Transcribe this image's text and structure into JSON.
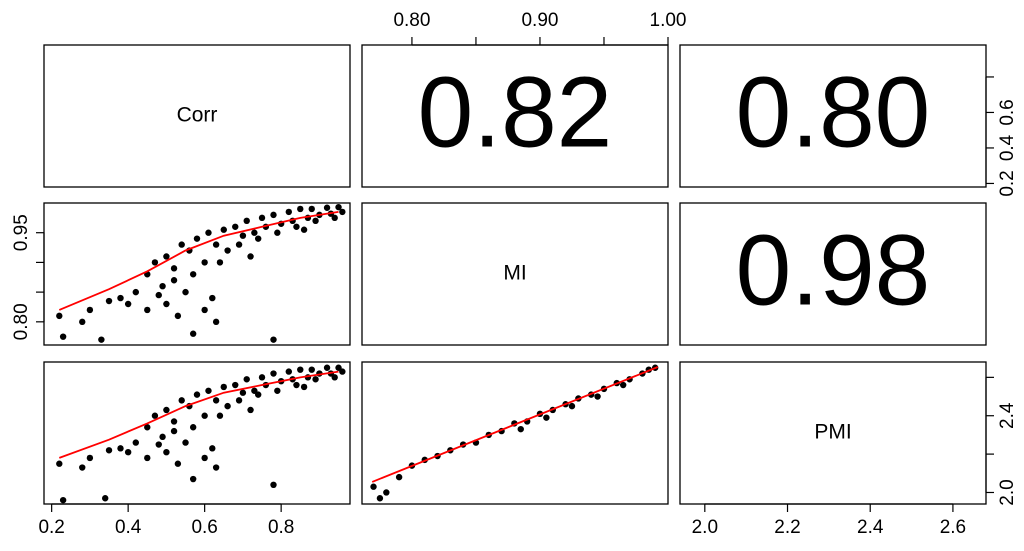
{
  "chart_data": {
    "type": "pairs",
    "variables": [
      {
        "name": "Corr",
        "lim": [
          0.18,
          0.98
        ],
        "xticks": [
          0.2,
          0.4,
          0.6,
          0.8
        ],
        "yticks": [
          0.2,
          0.4,
          0.6,
          {
            "value": 0.8,
            "label": null
          }
        ]
      },
      {
        "name": "MI",
        "lim": [
          0.761,
          1.0
        ],
        "xticks": [
          {
            "value": 0.8,
            "label": "0.80"
          },
          {
            "value": 0.85,
            "label": null
          },
          {
            "value": 0.9,
            "label": "0.90"
          },
          {
            "value": 0.95,
            "label": null
          },
          {
            "value": 1.0,
            "label": "1.00"
          }
        ],
        "yticks": [
          {
            "value": 0.8,
            "label": "0.80"
          },
          {
            "value": 0.85,
            "label": null
          },
          {
            "value": 0.9,
            "label": null
          },
          {
            "value": 0.95,
            "label": "0.95"
          }
        ]
      },
      {
        "name": "PMI",
        "lim": [
          1.94,
          2.68
        ],
        "xticks": [
          {
            "value": 2.0,
            "label": "2.0"
          },
          {
            "value": 2.2,
            "label": "2.2"
          },
          {
            "value": 2.4,
            "label": "2.4"
          },
          {
            "value": 2.6,
            "label": "2.6"
          }
        ],
        "yticks": [
          {
            "value": 2.0,
            "label": "2.0"
          },
          {
            "value": 2.2,
            "label": null
          },
          {
            "value": 2.4,
            "label": "2.4"
          },
          {
            "value": 2.6,
            "label": null
          }
        ]
      }
    ],
    "correlations": {
      "values": [
        0.82,
        0.8,
        0.98
      ],
      "value_labels": [
        "0.82",
        "0.80",
        "0.98"
      ]
    },
    "point_color": "#000000",
    "smooth_color": "#ff0000",
    "scatter": [
      {
        "x": [
          0.22,
          0.23,
          0.28,
          0.3,
          0.33,
          0.35,
          0.38,
          0.4,
          0.42,
          0.45,
          0.48,
          0.5,
          0.53,
          0.55,
          0.57,
          0.6,
          0.62,
          0.63,
          0.78,
          0.45,
          0.47,
          0.5,
          0.52,
          0.54,
          0.56,
          0.58,
          0.6,
          0.61,
          0.63,
          0.65,
          0.66,
          0.68,
          0.7,
          0.71,
          0.73,
          0.75,
          0.76,
          0.78,
          0.8,
          0.82,
          0.83,
          0.85,
          0.87,
          0.88,
          0.9,
          0.92,
          0.93,
          0.95,
          0.96,
          0.64,
          0.69,
          0.74,
          0.79,
          0.84,
          0.89,
          0.94,
          0.57,
          0.52,
          0.49,
          0.72,
          0.86
        ],
        "y": [
          0.81,
          0.775,
          0.8,
          0.82,
          0.77,
          0.835,
          0.84,
          0.83,
          0.85,
          0.82,
          0.845,
          0.83,
          0.81,
          0.85,
          0.78,
          0.82,
          0.84,
          0.8,
          0.77,
          0.88,
          0.9,
          0.91,
          0.89,
          0.93,
          0.92,
          0.94,
          0.9,
          0.95,
          0.93,
          0.955,
          0.92,
          0.96,
          0.945,
          0.97,
          0.95,
          0.975,
          0.96,
          0.98,
          0.965,
          0.985,
          0.97,
          0.99,
          0.975,
          0.99,
          0.98,
          0.992,
          0.982,
          0.993,
          0.985,
          0.9,
          0.93,
          0.94,
          0.95,
          0.96,
          0.97,
          0.975,
          0.88,
          0.87,
          0.86,
          0.91,
          0.955
        ],
        "smooth_x": [
          0.22,
          0.35,
          0.45,
          0.55,
          0.65,
          0.75,
          0.85,
          0.95
        ],
        "smooth_y": [
          0.82,
          0.855,
          0.885,
          0.92,
          0.945,
          0.96,
          0.975,
          0.985
        ]
      },
      {
        "x": [
          0.22,
          0.23,
          0.28,
          0.3,
          0.34,
          0.35,
          0.38,
          0.4,
          0.42,
          0.45,
          0.48,
          0.5,
          0.53,
          0.55,
          0.57,
          0.6,
          0.62,
          0.63,
          0.78,
          0.45,
          0.47,
          0.5,
          0.52,
          0.54,
          0.56,
          0.58,
          0.6,
          0.61,
          0.63,
          0.65,
          0.66,
          0.68,
          0.7,
          0.71,
          0.73,
          0.75,
          0.76,
          0.78,
          0.8,
          0.82,
          0.83,
          0.85,
          0.87,
          0.88,
          0.9,
          0.92,
          0.93,
          0.95,
          0.96,
          0.64,
          0.69,
          0.74,
          0.79,
          0.84,
          0.89,
          0.94,
          0.57,
          0.52,
          0.49,
          0.72,
          0.86
        ],
        "y": [
          2.15,
          1.96,
          2.13,
          2.18,
          1.97,
          2.22,
          2.23,
          2.21,
          2.26,
          2.18,
          2.25,
          2.21,
          2.15,
          2.26,
          2.07,
          2.18,
          2.23,
          2.13,
          2.04,
          2.34,
          2.4,
          2.43,
          2.37,
          2.48,
          2.45,
          2.51,
          2.4,
          2.53,
          2.48,
          2.55,
          2.45,
          2.56,
          2.52,
          2.59,
          2.53,
          2.6,
          2.56,
          2.62,
          2.58,
          2.63,
          2.59,
          2.64,
          2.6,
          2.64,
          2.62,
          2.65,
          2.62,
          2.65,
          2.63,
          2.4,
          2.48,
          2.51,
          2.53,
          2.56,
          2.59,
          2.6,
          2.34,
          2.32,
          2.29,
          2.43,
          2.55
        ],
        "smooth_x": [
          0.22,
          0.35,
          0.45,
          0.55,
          0.65,
          0.75,
          0.85,
          0.95
        ],
        "smooth_y": [
          2.18,
          2.275,
          2.36,
          2.45,
          2.52,
          2.56,
          2.6,
          2.63
        ]
      },
      {
        "x": [
          0.77,
          0.775,
          0.78,
          0.79,
          0.8,
          0.81,
          0.82,
          0.83,
          0.84,
          0.85,
          0.86,
          0.87,
          0.88,
          0.89,
          0.9,
          0.91,
          0.92,
          0.93,
          0.94,
          0.95,
          0.96,
          0.97,
          0.98,
          0.985,
          0.99,
          0.885,
          0.905,
          0.925,
          0.945,
          0.965
        ],
        "y": [
          2.03,
          1.97,
          2.0,
          2.08,
          2.14,
          2.17,
          2.19,
          2.22,
          2.25,
          2.26,
          2.3,
          2.32,
          2.36,
          2.37,
          2.41,
          2.43,
          2.46,
          2.49,
          2.51,
          2.54,
          2.57,
          2.59,
          2.62,
          2.64,
          2.65,
          2.33,
          2.39,
          2.45,
          2.5,
          2.56
        ],
        "smooth_x": [
          0.769,
          0.992
        ],
        "smooth_y": [
          2.055,
          2.654
        ]
      }
    ]
  }
}
